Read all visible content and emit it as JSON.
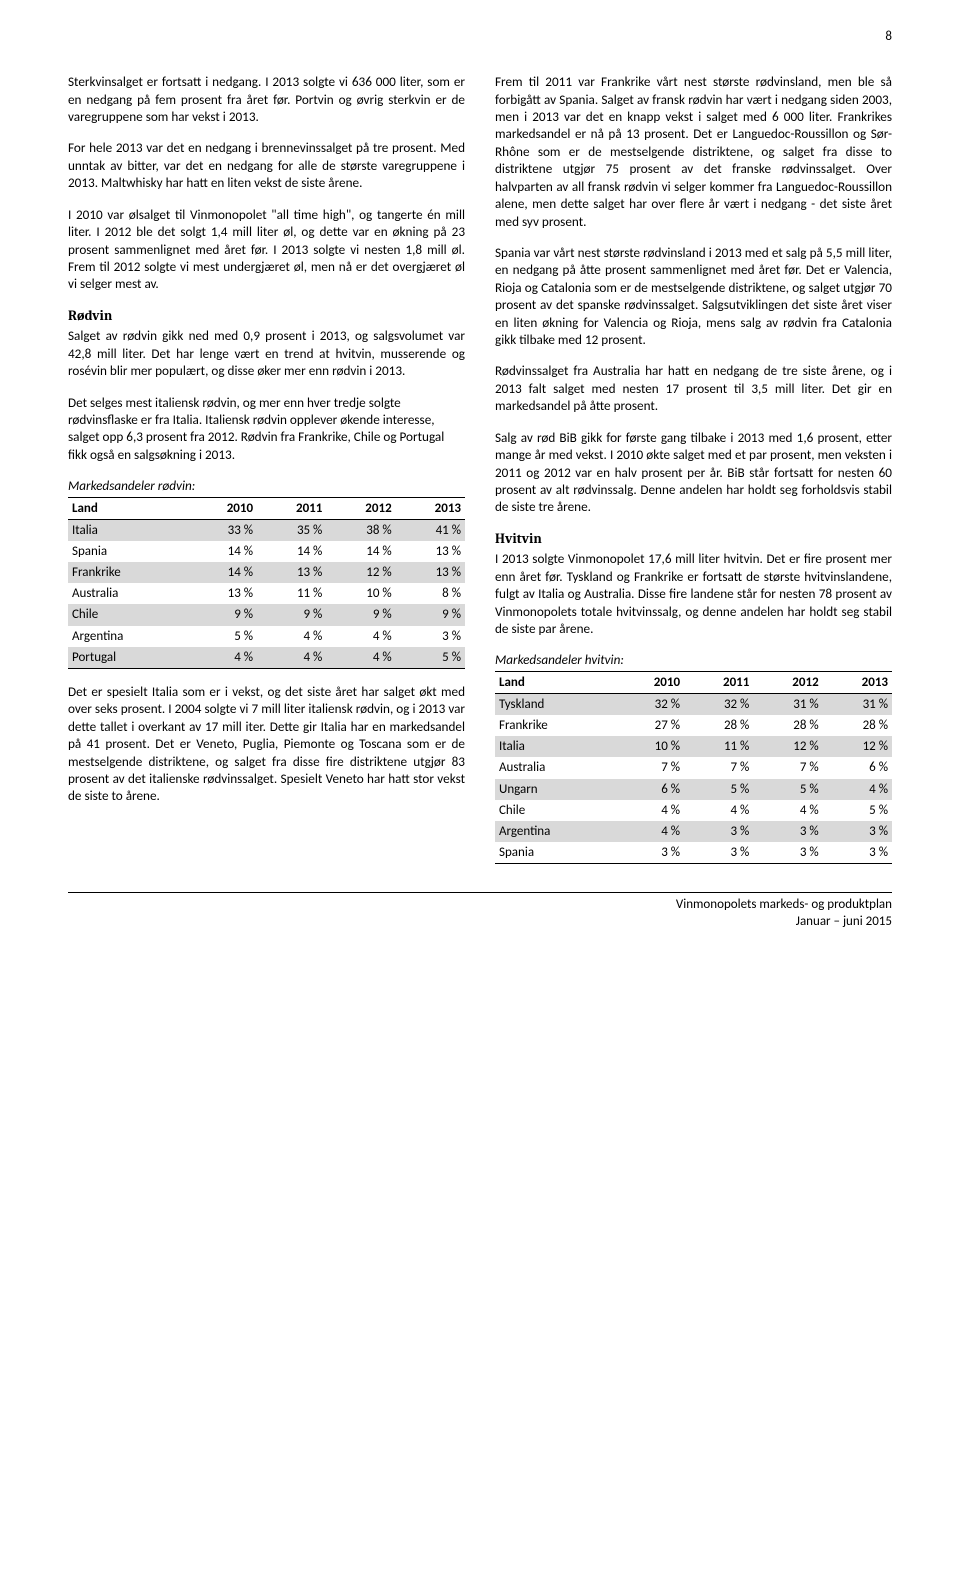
{
  "page_number": "8",
  "left": {
    "p1": "Sterkvinsalget er fortsatt i nedgang. I 2013 solgte vi 636 000 liter, som er en nedgang på fem prosent fra året før. Portvin og øvrig sterkvin er de varegruppene som har vekst i 2013.",
    "p2": "For hele 2013 var det en nedgang i brennevinssalget på tre prosent. Med unntak av bitter, var det en nedgang for alle de største varegruppene i 2013. Maltwhisky har hatt en liten vekst de siste årene.",
    "p3": "I 2010 var ølsalget til Vinmonopolet \"all time high\", og tangerte én mill liter. I 2012 ble det solgt 1,4 mill liter øl, og dette var en økning på 23 prosent sammenlignet med året før. I 2013 solgte vi nesten 1,8 mill øl. Frem til 2012 solgte vi mest undergjæret øl, men nå er det overgjæret øl vi selger mest av.",
    "h_rodvin": "Rødvin",
    "p4": "Salget av rødvin gikk ned med 0,9 prosent i 2013, og salgsvolumet var 42,8 mill liter. Det har lenge vært en trend at hvitvin, musserende og rosévin blir mer populært, og disse øker mer enn rødvin i 2013.",
    "p5": "Det selges mest italiensk rødvin, og mer enn hver tredje solgte rødvinsflaske er fra Italia. Italiensk rødvin opplever økende interesse, salget opp 6,3 prosent fra 2012. Rødvin fra Frankrike, Chile og Portugal fikk også en salgsøkning i 2013.",
    "caption_rodvin": "Markedsandeler rødvin:",
    "table_rodvin": {
      "columns": [
        "Land",
        "2010",
        "2011",
        "2012",
        "2013"
      ],
      "rows": [
        {
          "shade": true,
          "cells": [
            "Italia",
            "33 %",
            "35 %",
            "38 %",
            "41 %"
          ]
        },
        {
          "shade": false,
          "cells": [
            "Spania",
            "14 %",
            "14 %",
            "14 %",
            "13 %"
          ]
        },
        {
          "shade": true,
          "cells": [
            "Frankrike",
            "14 %",
            "13 %",
            "12 %",
            "13 %"
          ]
        },
        {
          "shade": false,
          "cells": [
            "Australia",
            "13 %",
            "11 %",
            "10 %",
            "8 %"
          ]
        },
        {
          "shade": true,
          "cells": [
            "Chile",
            "9 %",
            "9 %",
            "9 %",
            "9 %"
          ]
        },
        {
          "shade": false,
          "cells": [
            "Argentina",
            "5 %",
            "4 %",
            "4 %",
            "3 %"
          ]
        },
        {
          "shade": true,
          "cells": [
            "Portugal",
            "4 %",
            "4 %",
            "4 %",
            "5 %"
          ]
        }
      ]
    },
    "p6": "Det er spesielt Italia som er i vekst, og det siste året har salget økt med over seks prosent. I 2004 solgte vi 7 mill liter italiensk rødvin, og i 2013 var dette tallet i overkant av 17 mill iter. Dette gir Italia har en markedsandel på 41 prosent. Det er Veneto, Puglia, Piemonte og Toscana som er de mestselgende distriktene, og salget fra disse fire distriktene utgjør 83 prosent av det italienske rødvinssalget. Spesielt Veneto har hatt stor vekst de siste to årene."
  },
  "right": {
    "p1": "Frem til 2011 var Frankrike vårt nest største rødvinsland, men ble så forbigått av Spania. Salget av fransk rødvin har vært i nedgang siden 2003, men i 2013 var det en knapp vekst i salget med 6 000 liter. Frankrikes markedsandel er nå på 13 prosent. Det er Languedoc-Roussillon og Sør-Rhône som er de mestselgende distriktene, og salget fra disse to distriktene utgjør 75 prosent av det franske rødvinssalget. Over halvparten av all fransk rødvin vi selger kommer fra Languedoc-Roussillon alene, men dette salget har over flere år vært i nedgang - det siste året med syv prosent.",
    "p2": "Spania var vårt nest største rødvinsland i 2013 med et salg på 5,5 mill liter, en nedgang på åtte prosent sammenlignet med året før. Det er Valencia, Rioja og Catalonia som er de mestselgende distriktene, og salget utgjør 70 prosent av det spanske rødvinssalget. Salgsutviklingen det siste året viser en liten økning for Valencia og Rioja, mens salg av rødvin fra Catalonia gikk tilbake med 12 prosent.",
    "p3": "Rødvinssalget fra Australia har hatt en nedgang de tre siste årene, og i 2013 falt salget med nesten 17 prosent til 3,5 mill liter. Det gir en markedsandel på åtte prosent.",
    "p4": "Salg av rød BiB gikk for første gang tilbake i 2013 med 1,6 prosent, etter mange år med vekst. I 2010 økte salget med et par prosent, men veksten i 2011 og 2012 var en halv prosent per år. BiB står fortsatt for nesten 60 prosent av alt rødvinssalg. Denne andelen har holdt seg forholdsvis stabil de siste tre årene.",
    "h_hvitvin": "Hvitvin",
    "p5": "I 2013 solgte Vinmonopolet 17,6 mill liter hvitvin. Det er fire prosent mer enn året før. Tyskland og Frankrike er fortsatt de største hvitvinslandene, fulgt av Italia og Australia. Disse fire landene står for nesten 78 prosent av Vinmonopolets totale hvitvinssalg, og denne andelen har holdt seg stabil de siste par årene.",
    "caption_hvitvin": "Markedsandeler hvitvin:",
    "table_hvitvin": {
      "columns": [
        "Land",
        "2010",
        "2011",
        "2012",
        "2013"
      ],
      "rows": [
        {
          "shade": true,
          "cells": [
            "Tyskland",
            "32 %",
            "32 %",
            "31 %",
            "31 %"
          ]
        },
        {
          "shade": false,
          "cells": [
            "Frankrike",
            "27 %",
            "28 %",
            "28 %",
            "28 %"
          ]
        },
        {
          "shade": true,
          "cells": [
            "Italia",
            "10 %",
            "11 %",
            "12 %",
            "12 %"
          ]
        },
        {
          "shade": false,
          "cells": [
            "Australia",
            "7 %",
            "7 %",
            "7 %",
            "6 %"
          ]
        },
        {
          "shade": true,
          "cells": [
            "Ungarn",
            "6 %",
            "5 %",
            "5 %",
            "4 %"
          ]
        },
        {
          "shade": false,
          "cells": [
            "Chile",
            "4 %",
            "4 %",
            "4 %",
            "5 %"
          ]
        },
        {
          "shade": true,
          "cells": [
            "Argentina",
            "4 %",
            "3 %",
            "3 %",
            "3 %"
          ]
        },
        {
          "shade": false,
          "cells": [
            "Spania",
            "3 %",
            "3 %",
            "3 %",
            "3 %"
          ]
        }
      ]
    }
  },
  "footer": {
    "line1": "Vinmonopolets markeds- og produktplan",
    "line2": "Januar – juni 2015"
  }
}
